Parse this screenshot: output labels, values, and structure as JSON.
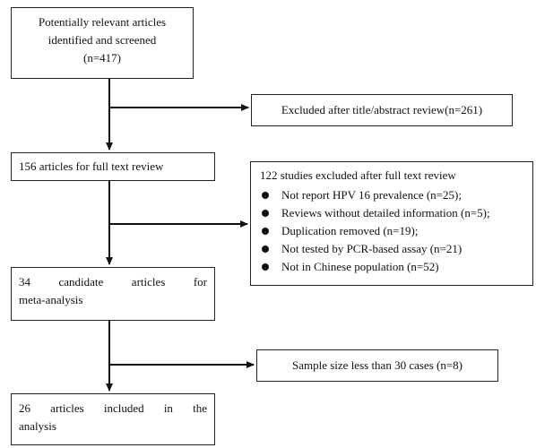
{
  "boxes": {
    "identified": {
      "lines": [
        "Potentially relevant articles",
        "identified and screened",
        "(n=417)"
      ]
    },
    "full_text": {
      "text": "156 articles for full text review"
    },
    "candidates": {
      "lines": [
        "34 candidate articles for",
        "meta-analysis"
      ]
    },
    "included": {
      "lines": [
        "26 articles included in the",
        "analysis"
      ]
    }
  },
  "exclusions": {
    "title_abstract": {
      "text": "Excluded after title/abstract review(n=261)"
    },
    "full_text": {
      "title": "122 studies excluded after full text review",
      "reasons": [
        "Not report HPV 16 prevalence (n=25);",
        "Reviews without detailed information (n=5);",
        "Duplication removed (n=19);",
        "Not tested by PCR-based assay (n=21)",
        "Not in Chinese population (n=52)"
      ]
    },
    "sample_size": {
      "text": "Sample size less than 30 cases (n=8)"
    }
  }
}
